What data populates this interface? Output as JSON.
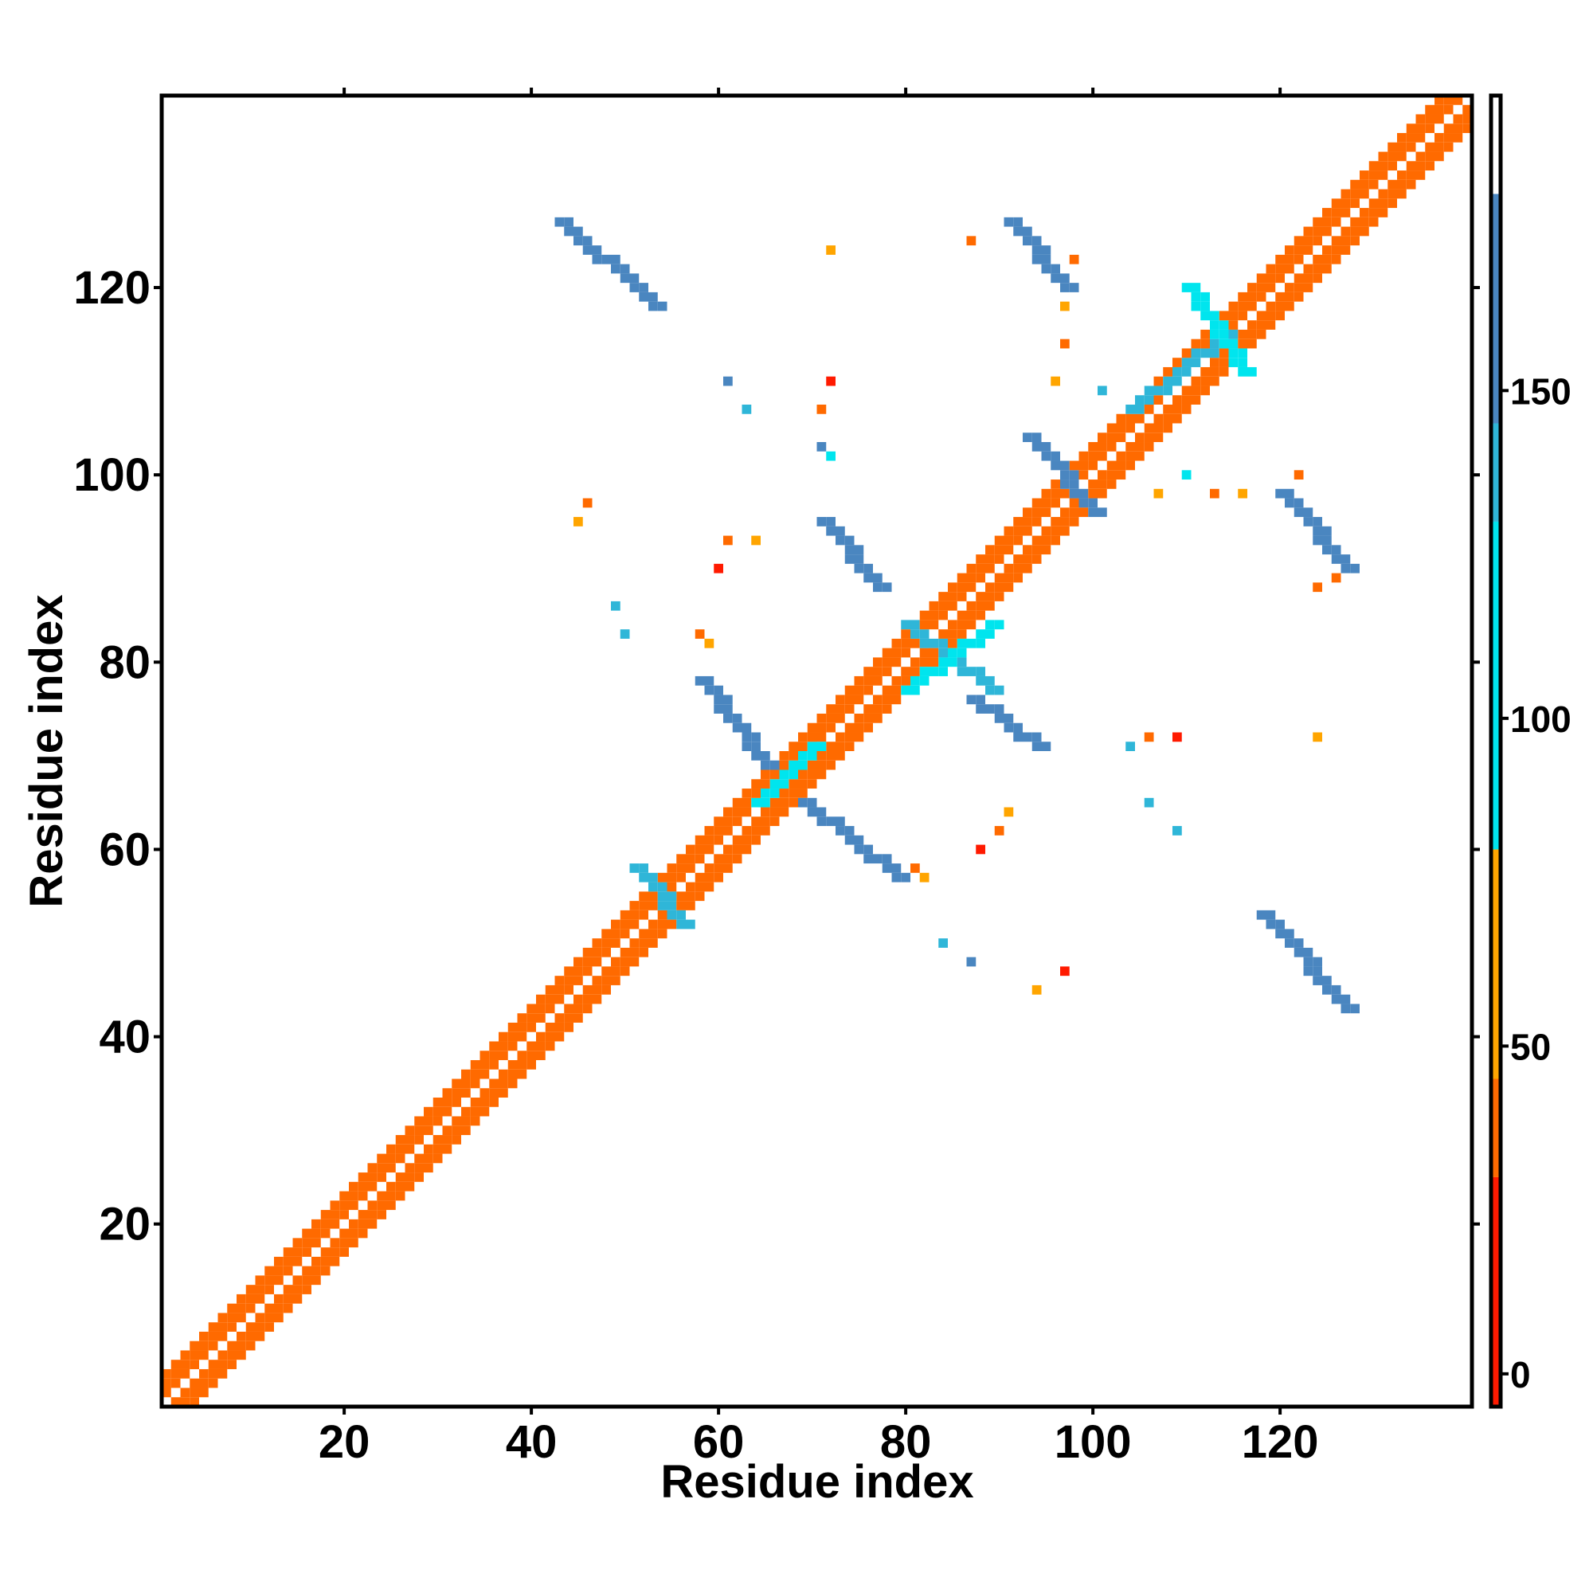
{
  "chart_data": {
    "type": "heatmap",
    "title": "",
    "xlabel": "Residue index",
    "ylabel": "Residue index",
    "xlim": [
      1,
      140
    ],
    "ylim": [
      1,
      140
    ],
    "x_ticks": [
      20,
      40,
      60,
      80,
      100,
      120
    ],
    "y_ticks": [
      20,
      40,
      60,
      80,
      100,
      120
    ],
    "colorbar": {
      "ticks": [
        0,
        50,
        100,
        150
      ],
      "range": [
        -5,
        195
      ],
      "bins": [
        {
          "from": -5,
          "to": 30,
          "color": "#ff1a00"
        },
        {
          "from": 30,
          "to": 45,
          "color": "#ff6a00"
        },
        {
          "from": 45,
          "to": 80,
          "color": "#ffa500"
        },
        {
          "from": 80,
          "to": 130,
          "color": "#00e5ee"
        },
        {
          "from": 130,
          "to": 145,
          "color": "#2fb6d8"
        },
        {
          "from": 145,
          "to": 180,
          "color": "#4a86c0"
        },
        {
          "from": 180,
          "to": 195,
          "color": "#ffffff"
        }
      ]
    },
    "diagonal_bands": [
      {
        "x": [
          1,
          140
        ],
        "offset": [
          1,
          2,
          3
        ],
        "color": "#ff6a00"
      },
      {
        "x": [
          1,
          140
        ],
        "offset": [
          -1,
          -2,
          -3
        ],
        "color": "#ff6a00"
      }
    ],
    "segments": [
      {
        "x": [
          43,
          53
        ],
        "y": [
          127,
          118
        ],
        "color": "#4a86c0"
      },
      {
        "x": [
          91,
          97
        ],
        "y": [
          127,
          120
        ],
        "color": "#4a86c0"
      },
      {
        "x": [
          118,
          127
        ],
        "y": [
          53,
          43
        ],
        "color": "#4a86c0"
      },
      {
        "x": [
          120,
          127
        ],
        "y": [
          98,
          90
        ],
        "color": "#4a86c0"
      },
      {
        "x": [
          58,
          65
        ],
        "y": [
          78,
          69
        ],
        "color": "#4a86c0"
      },
      {
        "x": [
          69,
          79
        ],
        "y": [
          65,
          57
        ],
        "color": "#4a86c0"
      },
      {
        "x": [
          71,
          77
        ],
        "y": [
          95,
          88
        ],
        "color": "#4a86c0"
      },
      {
        "x": [
          87,
          94
        ],
        "y": [
          76,
          71
        ],
        "color": "#4a86c0"
      },
      {
        "x": [
          93,
          100
        ],
        "y": [
          104,
          96
        ],
        "color": "#4a86c0"
      },
      {
        "x": [
          51,
          56
        ],
        "y": [
          58,
          52
        ],
        "color": "#2fb6d8"
      },
      {
        "x": [
          80,
          89
        ],
        "y": [
          84,
          77
        ],
        "color": "#2fb6d8"
      },
      {
        "x": [
          80,
          89
        ],
        "y": [
          77,
          84
        ],
        "color": "#00e5ee"
      },
      {
        "x": [
          64,
          70
        ],
        "y": [
          65,
          71
        ],
        "color": "#00e5ee"
      },
      {
        "x": [
          104,
          114
        ],
        "y": [
          107,
          115
        ],
        "color": "#2fb6d8"
      },
      {
        "x": [
          110,
          116
        ],
        "y": [
          120,
          111
        ],
        "color": "#00e5ee"
      }
    ],
    "points": [
      {
        "x": 45,
        "y": 95,
        "color": "#ffa500"
      },
      {
        "x": 46,
        "y": 97,
        "color": "#ff6a00"
      },
      {
        "x": 61,
        "y": 93,
        "color": "#ff6a00"
      },
      {
        "x": 60,
        "y": 90,
        "color": "#ff1a00"
      },
      {
        "x": 58,
        "y": 83,
        "color": "#ff6a00"
      },
      {
        "x": 59,
        "y": 82,
        "color": "#ffa500"
      },
      {
        "x": 64,
        "y": 93,
        "color": "#ffa500"
      },
      {
        "x": 72,
        "y": 124,
        "color": "#ffa500"
      },
      {
        "x": 87,
        "y": 125,
        "color": "#ff6a00"
      },
      {
        "x": 98,
        "y": 123,
        "color": "#ff6a00"
      },
      {
        "x": 97,
        "y": 118,
        "color": "#ffa500"
      },
      {
        "x": 97,
        "y": 114,
        "color": "#ff6a00"
      },
      {
        "x": 72,
        "y": 110,
        "color": "#ff1a00"
      },
      {
        "x": 71,
        "y": 107,
        "color": "#ff6a00"
      },
      {
        "x": 72,
        "y": 102,
        "color": "#00e5ee"
      },
      {
        "x": 71,
        "y": 103,
        "color": "#4a86c0"
      },
      {
        "x": 61,
        "y": 110,
        "color": "#4a86c0"
      },
      {
        "x": 63,
        "y": 107,
        "color": "#2fb6d8"
      },
      {
        "x": 49,
        "y": 86,
        "color": "#2fb6d8"
      },
      {
        "x": 50,
        "y": 83,
        "color": "#2fb6d8"
      },
      {
        "x": 96,
        "y": 110,
        "color": "#ffa500"
      },
      {
        "x": 101,
        "y": 109,
        "color": "#2fb6d8"
      },
      {
        "x": 107,
        "y": 98,
        "color": "#ffa500"
      },
      {
        "x": 110,
        "y": 100,
        "color": "#00e5ee"
      },
      {
        "x": 113,
        "y": 98,
        "color": "#ff6a00"
      },
      {
        "x": 116,
        "y": 98,
        "color": "#ffa500"
      },
      {
        "x": 122,
        "y": 100,
        "color": "#ff6a00"
      },
      {
        "x": 124,
        "y": 88,
        "color": "#ff6a00"
      },
      {
        "x": 126,
        "y": 89,
        "color": "#ff6a00"
      },
      {
        "x": 104,
        "y": 71,
        "color": "#2fb6d8"
      },
      {
        "x": 106,
        "y": 72,
        "color": "#ff6a00"
      },
      {
        "x": 109,
        "y": 72,
        "color": "#ff1a00"
      },
      {
        "x": 124,
        "y": 72,
        "color": "#ffa500"
      },
      {
        "x": 106,
        "y": 65,
        "color": "#2fb6d8"
      },
      {
        "x": 109,
        "y": 62,
        "color": "#2fb6d8"
      },
      {
        "x": 88,
        "y": 60,
        "color": "#ff1a00"
      },
      {
        "x": 90,
        "y": 62,
        "color": "#ff6a00"
      },
      {
        "x": 91,
        "y": 64,
        "color": "#ffa500"
      },
      {
        "x": 81,
        "y": 58,
        "color": "#ff6a00"
      },
      {
        "x": 82,
        "y": 57,
        "color": "#ffa500"
      },
      {
        "x": 84,
        "y": 50,
        "color": "#2fb6d8"
      },
      {
        "x": 87,
        "y": 48,
        "color": "#4a86c0"
      },
      {
        "x": 94,
        "y": 45,
        "color": "#ffa500"
      },
      {
        "x": 97,
        "y": 47,
        "color": "#ff1a00"
      }
    ]
  }
}
